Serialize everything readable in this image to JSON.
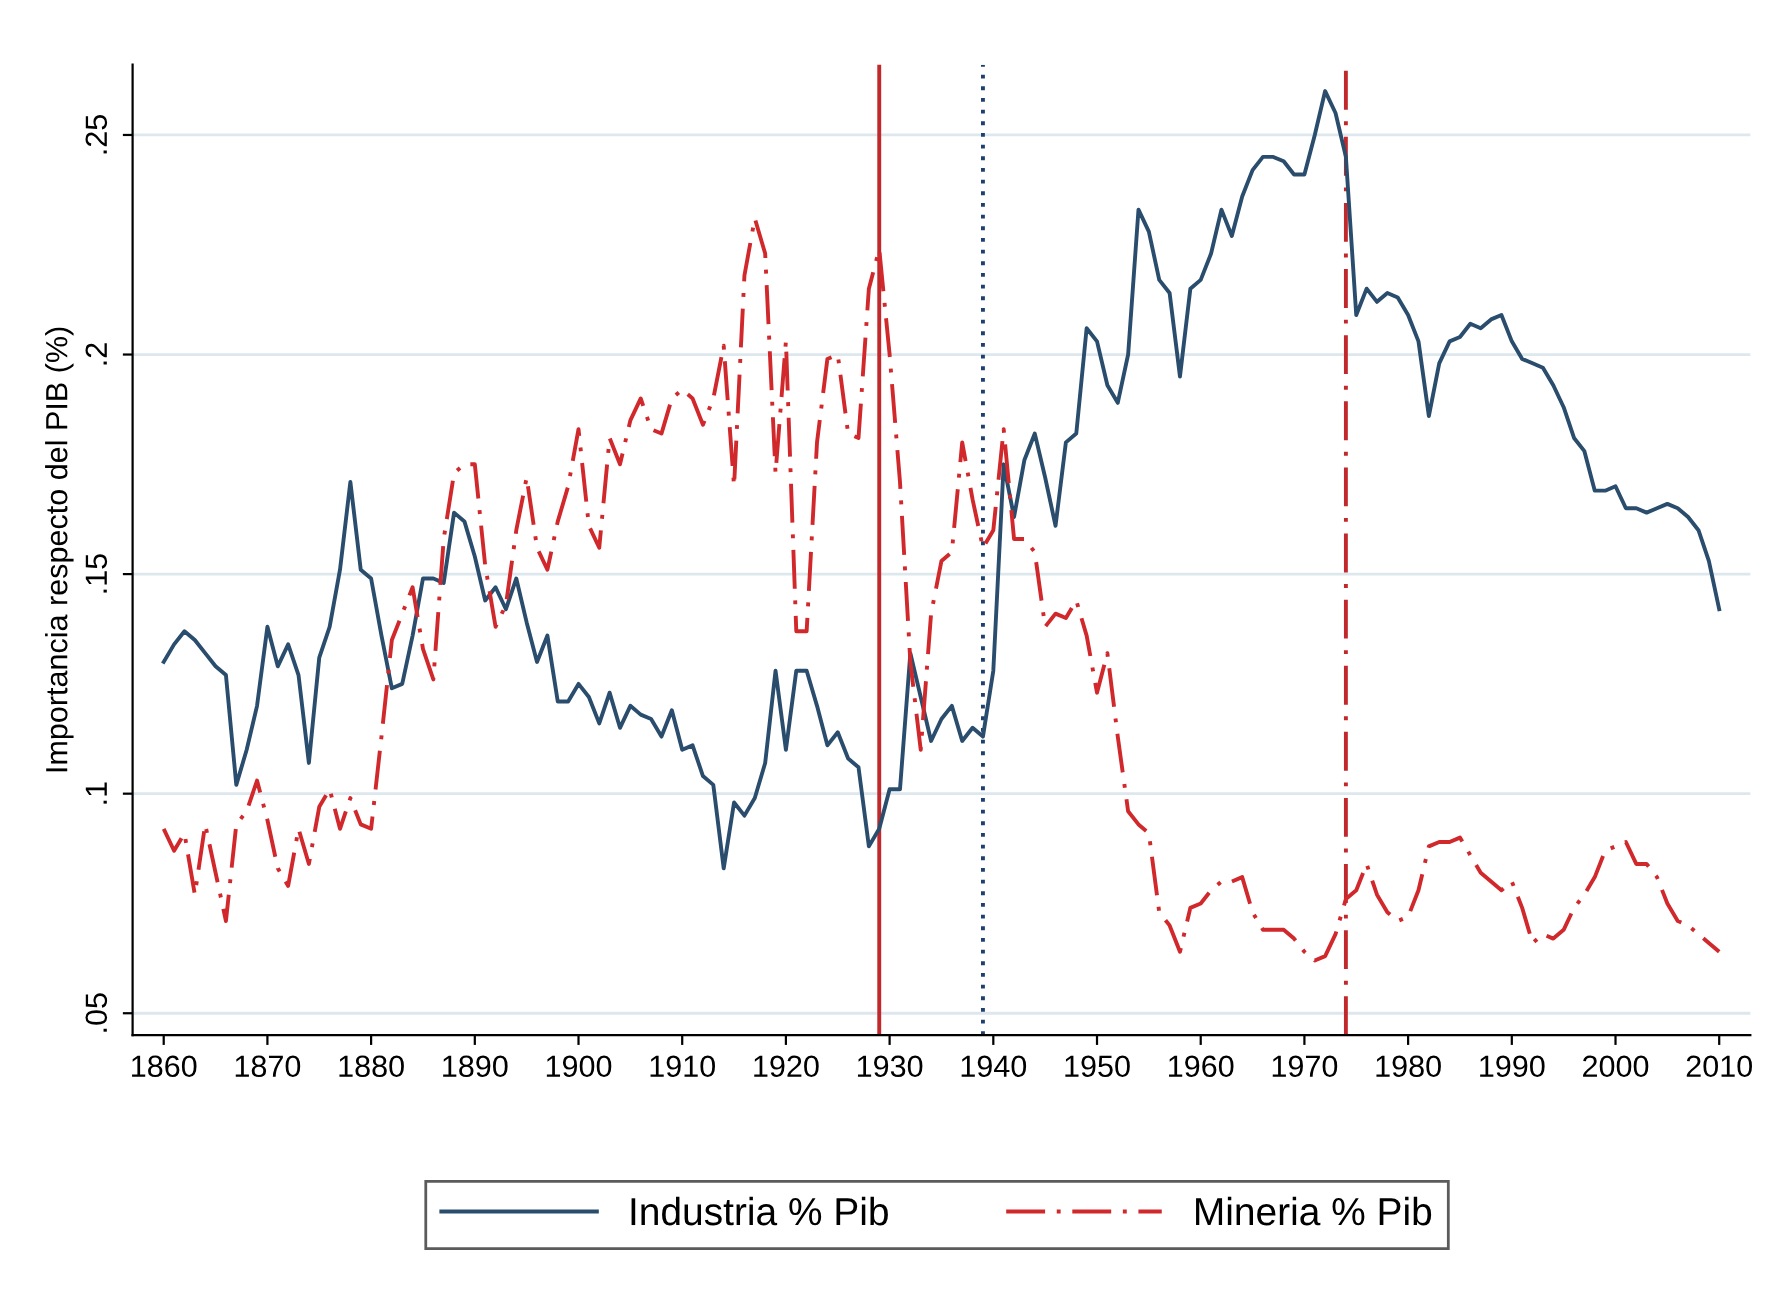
{
  "chart_data": {
    "type": "line",
    "ylabel": "Importancia respecto del PIB (%)",
    "xlim": [
      1857,
      2013
    ],
    "xticks": [
      1860,
      1870,
      1880,
      1890,
      1900,
      1910,
      1920,
      1930,
      1940,
      1950,
      1960,
      1970,
      1980,
      1990,
      2000,
      2010
    ],
    "ylim": [
      0.045,
      0.266
    ],
    "yticks": [
      {
        "value": 0.05,
        "label": ".05"
      },
      {
        "value": 0.1,
        "label": ".1"
      },
      {
        "value": 0.15,
        "label": ".15"
      },
      {
        "value": 0.2,
        "label": ".2"
      },
      {
        "value": 0.25,
        "label": ".25"
      }
    ],
    "grid": "y",
    "legend": "bottom",
    "x": [
      1860,
      1861,
      1862,
      1863,
      1864,
      1865,
      1866,
      1867,
      1868,
      1869,
      1870,
      1871,
      1872,
      1873,
      1874,
      1875,
      1876,
      1877,
      1878,
      1879,
      1880,
      1881,
      1882,
      1883,
      1884,
      1885,
      1886,
      1887,
      1888,
      1889,
      1890,
      1891,
      1892,
      1893,
      1894,
      1895,
      1896,
      1897,
      1898,
      1899,
      1900,
      1901,
      1902,
      1903,
      1904,
      1905,
      1906,
      1907,
      1908,
      1909,
      1910,
      1911,
      1912,
      1913,
      1914,
      1915,
      1916,
      1917,
      1918,
      1919,
      1920,
      1921,
      1922,
      1923,
      1924,
      1925,
      1926,
      1927,
      1928,
      1929,
      1930,
      1931,
      1932,
      1933,
      1934,
      1935,
      1936,
      1937,
      1938,
      1939,
      1940,
      1941,
      1942,
      1943,
      1944,
      1945,
      1946,
      1947,
      1948,
      1949,
      1950,
      1951,
      1952,
      1953,
      1954,
      1955,
      1956,
      1957,
      1958,
      1959,
      1960,
      1961,
      1962,
      1963,
      1964,
      1965,
      1966,
      1967,
      1968,
      1969,
      1970,
      1971,
      1972,
      1973,
      1974,
      1975,
      1976,
      1977,
      1978,
      1979,
      1980,
      1981,
      1982,
      1983,
      1984,
      1985,
      1986,
      1987,
      1988,
      1989,
      1990,
      1991,
      1992,
      1993,
      1994,
      1995,
      1996,
      1997,
      1998,
      1999,
      2000,
      2001,
      2002,
      2003,
      2004,
      2005,
      2006,
      2007,
      2008,
      2009,
      2010
    ],
    "series": [
      {
        "name": "Industria % Pib",
        "color": "#2a4d6e",
        "line_style": "solid",
        "values": [
          0.13,
          0.134,
          0.137,
          0.135,
          0.132,
          0.129,
          0.127,
          0.102,
          0.11,
          0.12,
          0.138,
          0.129,
          0.134,
          0.127,
          0.107,
          0.131,
          0.138,
          0.151,
          0.171,
          0.151,
          0.149,
          0.136,
          0.124,
          0.125,
          0.136,
          0.149,
          0.149,
          0.148,
          0.164,
          0.162,
          0.154,
          0.144,
          0.147,
          0.142,
          0.149,
          0.139,
          0.13,
          0.136,
          0.121,
          0.121,
          0.125,
          0.122,
          0.116,
          0.123,
          0.115,
          0.12,
          0.118,
          0.117,
          0.113,
          0.119,
          0.11,
          0.111,
          0.104,
          0.102,
          0.083,
          0.098,
          0.095,
          0.099,
          0.107,
          0.128,
          0.11,
          0.128,
          0.128,
          0.12,
          0.111,
          0.114,
          0.108,
          0.106,
          0.088,
          0.092,
          0.101,
          0.101,
          0.132,
          0.122,
          0.112,
          0.117,
          0.12,
          0.112,
          0.115,
          0.113,
          0.128,
          0.175,
          0.163,
          0.176,
          0.182,
          0.172,
          0.161,
          0.18,
          0.182,
          0.206,
          0.203,
          0.193,
          0.189,
          0.2,
          0.233,
          0.228,
          0.217,
          0.214,
          0.195,
          0.215,
          0.217,
          0.223,
          0.233,
          0.227,
          0.236,
          0.242,
          0.245,
          0.245,
          0.244,
          0.241,
          0.241,
          0.25,
          0.26,
          0.255,
          0.245,
          0.209,
          0.215,
          0.212,
          0.214,
          0.213,
          0.209,
          0.203,
          0.186,
          0.198,
          0.203,
          0.204,
          0.207,
          0.206,
          0.208,
          0.209,
          0.203,
          0.199,
          0.198,
          0.197,
          0.193,
          0.188,
          0.181,
          0.178,
          0.169,
          0.169,
          0.17,
          0.165,
          0.165,
          0.164,
          0.165,
          0.166,
          0.165,
          0.163,
          0.16,
          0.153,
          0.142
        ]
      },
      {
        "name": "Mineria % Pib",
        "color": "#d1282c",
        "line_style": "dashdot",
        "values": [
          0.092,
          0.087,
          0.091,
          0.077,
          0.093,
          0.082,
          0.071,
          0.093,
          0.096,
          0.103,
          0.094,
          0.083,
          0.079,
          0.092,
          0.084,
          0.097,
          0.101,
          0.092,
          0.099,
          0.093,
          0.092,
          0.113,
          0.135,
          0.141,
          0.147,
          0.133,
          0.126,
          0.158,
          0.173,
          0.175,
          0.175,
          0.152,
          0.138,
          0.143,
          0.16,
          0.172,
          0.156,
          0.151,
          0.162,
          0.17,
          0.183,
          0.161,
          0.156,
          0.181,
          0.175,
          0.185,
          0.19,
          0.183,
          0.182,
          0.19,
          0.192,
          0.19,
          0.184,
          0.19,
          0.202,
          0.17,
          0.218,
          0.231,
          0.223,
          0.173,
          0.203,
          0.137,
          0.137,
          0.18,
          0.199,
          0.2,
          0.182,
          0.181,
          0.215,
          0.224,
          0.2,
          0.171,
          0.13,
          0.11,
          0.141,
          0.153,
          0.155,
          0.18,
          0.167,
          0.156,
          0.16,
          0.183,
          0.158,
          0.158,
          0.155,
          0.138,
          0.141,
          0.14,
          0.144,
          0.136,
          0.123,
          0.132,
          0.113,
          0.096,
          0.093,
          0.091,
          0.073,
          0.07,
          0.064,
          0.074,
          0.075,
          0.078,
          0.08,
          0.08,
          0.081,
          0.073,
          0.069,
          0.069,
          0.069,
          0.067,
          0.064,
          0.062,
          0.063,
          0.068,
          0.076,
          0.078,
          0.084,
          0.077,
          0.073,
          0.071,
          0.072,
          0.078,
          0.088,
          0.089,
          0.089,
          0.09,
          0.086,
          0.082,
          0.08,
          0.078,
          0.08,
          0.074,
          0.066,
          0.068,
          0.067,
          0.069,
          0.074,
          0.077,
          0.081,
          0.087,
          0.088,
          0.089,
          0.084,
          0.084,
          0.081,
          0.075,
          0.071,
          0.07,
          0.068,
          0.066,
          0.064
        ]
      }
    ],
    "ref_lines": [
      {
        "axis": "x",
        "value": 1929,
        "color": "#c0282c",
        "line_style": "solid"
      },
      {
        "axis": "x",
        "value": 1939,
        "color": "#1f3f6e",
        "line_style": "dotted"
      },
      {
        "axis": "x",
        "value": 1974,
        "color": "#c0282c",
        "line_style": "dashdot"
      }
    ]
  }
}
